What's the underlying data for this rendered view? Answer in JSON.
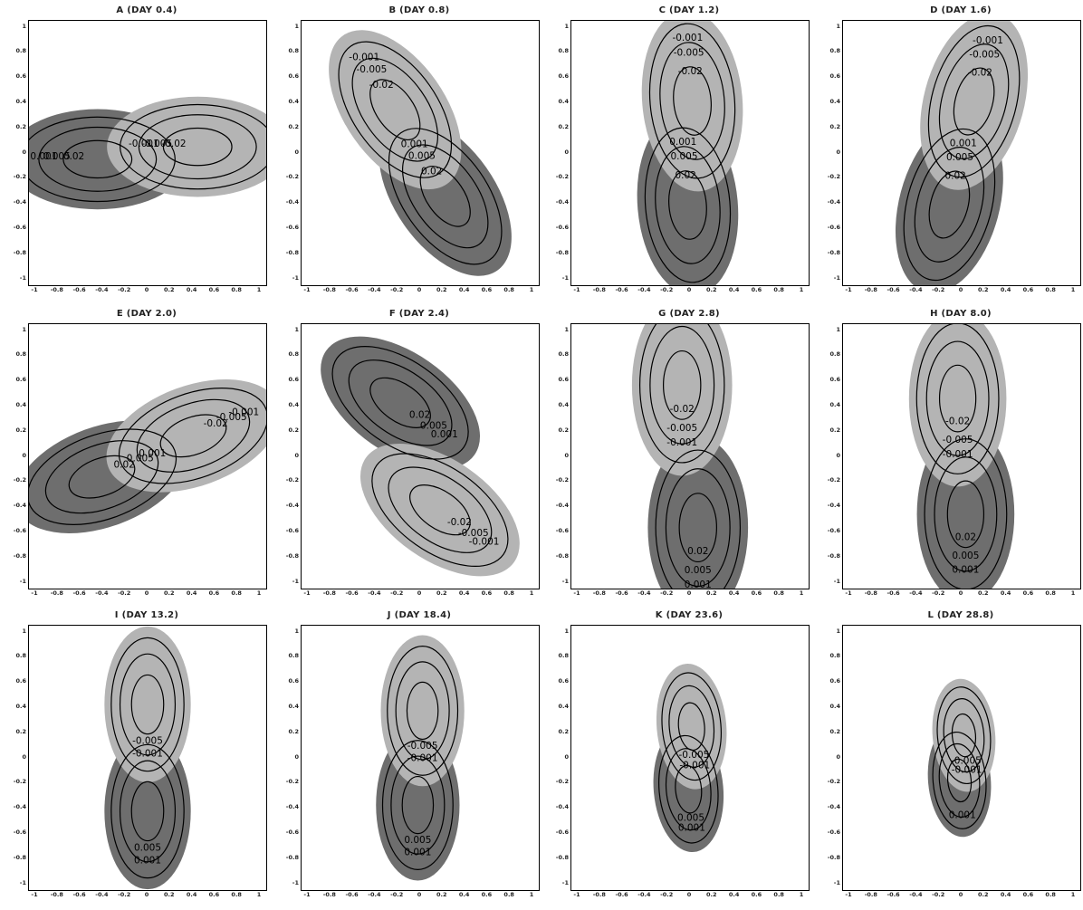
{
  "chart_data": [
    {
      "type": "contour",
      "title": "A (DAY 0.4)",
      "theta": 45,
      "dx": -0.35,
      "dy": 0.28,
      "flip": false,
      "sc": 0.72,
      "r": 0.42,
      "lead": "pos",
      "levels": [
        "0.001",
        "0.005",
        "0.02",
        "-0.001",
        "-0.005",
        "-0.02"
      ]
    },
    {
      "type": "contour",
      "title": "B (DAY 0.8)",
      "theta": -10,
      "dx": -0.28,
      "dy": 0.3,
      "flip": true,
      "sc": 0.72,
      "r": 0.42,
      "lead": "pos",
      "levels": [
        "0.001",
        "0.005",
        "0.02",
        "-0.001",
        "-0.005",
        "-0.02"
      ]
    },
    {
      "type": "contour",
      "title": "C (DAY 1.2)",
      "theta": -40,
      "dx": -0.25,
      "dy": 0.33,
      "flip": true,
      "sc": 0.72,
      "r": 0.42,
      "lead": "pos",
      "levels": [
        "0.001",
        "0.005",
        "0.02",
        "-0.001",
        "-0.005",
        "-0.02"
      ]
    },
    {
      "type": "contour",
      "title": "D (DAY 1.6)",
      "theta": -60,
      "dx": -0.3,
      "dy": 0.3,
      "flip": true,
      "sc": 0.72,
      "r": 0.42,
      "lead": "pos",
      "levels": [
        "0.001",
        "0.005",
        "0.02",
        "-0.001",
        "-0.005",
        "-0.02"
      ]
    },
    {
      "type": "contour",
      "title": "E (DAY 2.0)",
      "theta": -115,
      "dx": -0.32,
      "dy": 0.3,
      "flip": true,
      "sc": 0.72,
      "r": 0.42,
      "lead": "pos",
      "levels": [
        "0.001",
        "0.005",
        "0.02",
        "-0.001",
        "-0.005",
        "-0.02"
      ]
    },
    {
      "type": "contour",
      "title": "F (DAY 2.4)",
      "theta": -170,
      "dx": -0.1,
      "dy": 0.45,
      "flip": true,
      "sc": 0.72,
      "r": 0.42,
      "lead": "pos",
      "levels": [
        "0.001",
        "0.005",
        "0.02",
        "-0.001",
        "-0.005",
        "-0.02"
      ]
    },
    {
      "type": "contour",
      "title": "G (DAY 2.8)",
      "theta": 135,
      "dx": -0.45,
      "dy": 0.35,
      "flip": false,
      "sc": 0.72,
      "r": 0.42,
      "lead": "pos",
      "levels": [
        "0.001",
        "0.005",
        "0.02",
        "-0.001",
        "-0.005",
        "-0.02"
      ]
    },
    {
      "type": "contour",
      "title": "H (DAY 8.0)",
      "theta": 135,
      "dx": -0.35,
      "dy": 0.3,
      "flip": false,
      "sc": 0.7,
      "r": 0.42,
      "lead": "pos",
      "levels": [
        "0.001",
        "0.005",
        "0.02",
        "-0.001",
        "-0.005",
        "-0.02"
      ]
    },
    {
      "type": "contour",
      "title": "I (DAY 13.2)",
      "theta": 135,
      "dx": -0.3,
      "dy": 0.3,
      "flip": false,
      "sc": 0.62,
      "r": 0.4,
      "lead": "pos",
      "levels": [
        "0.001",
        "0.005",
        "-0.001",
        "-0.005"
      ]
    },
    {
      "type": "contour",
      "title": "J (DAY 18.4)",
      "theta": 135,
      "dx": -0.25,
      "dy": 0.28,
      "flip": false,
      "sc": 0.6,
      "r": 0.4,
      "lead": "pos",
      "levels": [
        "0.001",
        "0.005",
        "-0.001",
        "-0.005"
      ]
    },
    {
      "type": "contour",
      "title": "K (DAY 23.6)",
      "theta": 140,
      "dx": -0.15,
      "dy": 0.2,
      "flip": false,
      "sc": 0.5,
      "r": 0.35,
      "lead": "pos",
      "levels": [
        "0.001",
        "0.005",
        "-0.001",
        "-0.005"
      ]
    },
    {
      "type": "contour",
      "title": "L (DAY 28.8)",
      "theta": 140,
      "dx": -0.1,
      "dy": 0.15,
      "flip": false,
      "sc": 0.45,
      "r": 0.3,
      "lead": "pos",
      "levels": [
        "0.001",
        "-0.001",
        "-0.005"
      ]
    }
  ],
  "axes": {
    "xlim": [
      -1,
      1
    ],
    "ylim": [
      -1,
      1
    ],
    "yticks": [
      "1",
      "0.8",
      "0.6",
      "0.4",
      "0.2",
      "0",
      "-0.2",
      "-0.4",
      "-0.6",
      "-0.8",
      "-1"
    ],
    "xticks": [
      "-1",
      "-0.8",
      "-0.6",
      "-0.4",
      "-0.2",
      "0",
      "0.2",
      "0.4",
      "0.6",
      "0.8",
      "1"
    ]
  },
  "colors": {
    "positive": "#6e6e6e",
    "negative": "#b4b4b4",
    "contour": "#000000",
    "background": "#ffffff"
  }
}
